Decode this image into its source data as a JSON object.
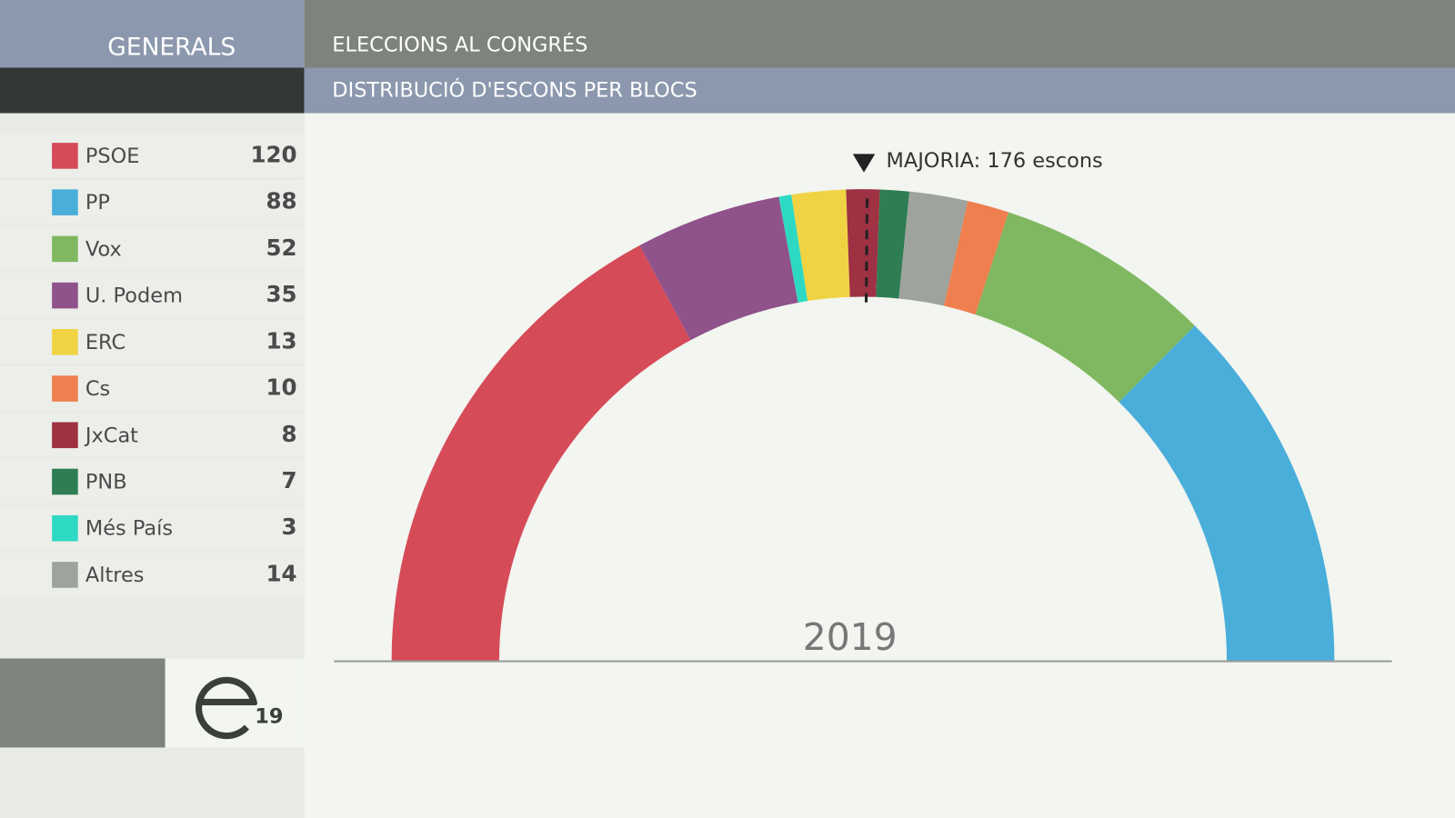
{
  "header": {
    "section": "GENERALS",
    "title": "ELECCIONS AL CONGRÉS",
    "subtitle": "DISTRIBUCIÓ D'ESCONS PER BLOCS"
  },
  "logo": {
    "number": "19"
  },
  "chart_data": {
    "type": "hemicycle",
    "year": "2019",
    "categories": [
      "PSOE",
      "PP",
      "Vox",
      "U. Podem",
      "ERC",
      "Cs",
      "JxCat",
      "PNB",
      "Més País",
      "Altres"
    ],
    "values": [
      120,
      88,
      52,
      35,
      13,
      10,
      8,
      7,
      3,
      14
    ],
    "colors": [
      "#d64b58",
      "#4aaedb",
      "#7fb860",
      "#8f528a",
      "#f0d343",
      "#ef7f4f",
      "#9e3142",
      "#2e7d53",
      "#2ed9c3",
      "#9fa39d"
    ],
    "majority": {
      "value": 176,
      "label": "MAJORIA: 176 escons"
    }
  }
}
